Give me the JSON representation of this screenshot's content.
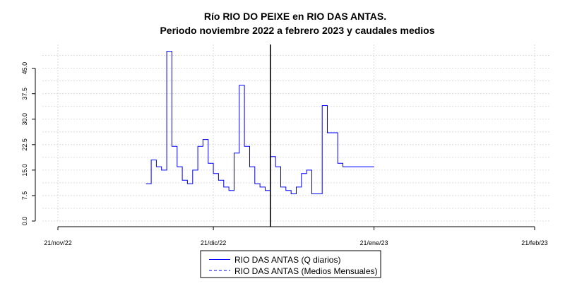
{
  "chart_data": {
    "type": "line",
    "title": "Río RIO DO PEIXE en RIO DAS ANTAS.",
    "subtitle": "Periodo noviembre 2022 a febrero 2023 y caudales medios",
    "xlabel": "",
    "ylabel": "",
    "x_range": [
      "2022-11-21",
      "2023-02-21"
    ],
    "ylim": [
      0,
      52
    ],
    "x_ticks": [
      {
        "date": "2022-11-21",
        "label": "21/nov/22"
      },
      {
        "date": "2022-12-21",
        "label": "21/dic/22"
      },
      {
        "date": "2023-01-21",
        "label": "21/ene/23"
      },
      {
        "date": "2023-02-21",
        "label": "21/feb/23"
      }
    ],
    "y_ticks": [
      0,
      7.5,
      15,
      22.5,
      30,
      37.5,
      45
    ],
    "y_tick_labels": [
      "0.0",
      "7.5",
      "15.0",
      "22.5",
      "30.0",
      "37.5",
      "45.0"
    ],
    "grid": true,
    "vertical_marker_date": "2023-01-01",
    "legend_position": "bottom",
    "colors": {
      "q_diarios": "#0000ff",
      "medios": "#0000ff",
      "marker": "#000000"
    },
    "series": [
      {
        "name": "RIO DAS ANTAS (Q diarios)",
        "style": "solid",
        "x": [
          "2022-12-08",
          "2022-12-09",
          "2022-12-10",
          "2022-12-11",
          "2022-12-12",
          "2022-12-13",
          "2022-12-14",
          "2022-12-15",
          "2022-12-16",
          "2022-12-17",
          "2022-12-18",
          "2022-12-19",
          "2022-12-20",
          "2022-12-21",
          "2022-12-22",
          "2022-12-23",
          "2022-12-24",
          "2022-12-25",
          "2022-12-26",
          "2022-12-27",
          "2022-12-28",
          "2022-12-29",
          "2022-12-30",
          "2022-12-31",
          "2023-01-01",
          "2023-01-02",
          "2023-01-03",
          "2023-01-04",
          "2023-01-05",
          "2023-01-06",
          "2023-01-07",
          "2023-01-08",
          "2023-01-09",
          "2023-01-10",
          "2023-01-11",
          "2023-01-12",
          "2023-01-13",
          "2023-01-14",
          "2023-01-15",
          "2023-01-16",
          "2023-01-17",
          "2023-01-18",
          "2023-01-19",
          "2023-01-20"
        ],
        "values": [
          11,
          18,
          16,
          15,
          50,
          22,
          16,
          12,
          11,
          15,
          22,
          24,
          17,
          14,
          12,
          10,
          9,
          20,
          40,
          22,
          16,
          11,
          10,
          9,
          19,
          16,
          10,
          9,
          8,
          10,
          14,
          15,
          8,
          8,
          34,
          26,
          26,
          17,
          16,
          16,
          16,
          16,
          16,
          16
        ]
      },
      {
        "name": "RIO DAS ANTAS (Medios Mensuales)",
        "style": "dashed",
        "x": [],
        "values": []
      }
    ]
  }
}
